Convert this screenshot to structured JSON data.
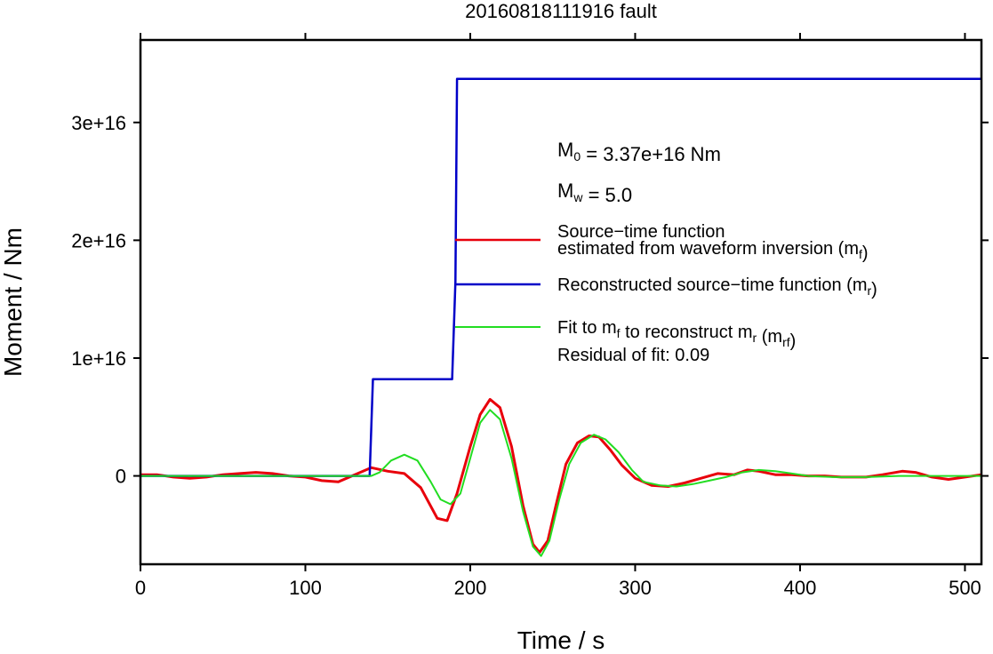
{
  "chart_data": {
    "type": "line",
    "title": "20160818111916 fault",
    "xlabel": "Time / s",
    "ylabel": "Moment / Nm",
    "xlim": [
      0,
      510
    ],
    "ylim": [
      -7500000000000000.0,
      3.7e+16
    ],
    "xticks": [
      0,
      100,
      200,
      300,
      400,
      500
    ],
    "xtick_labels": [
      "0",
      "100",
      "200",
      "300",
      "400",
      "500"
    ],
    "yticks": [
      0,
      1e+16,
      2e+16,
      3e+16
    ],
    "ytick_labels": [
      "0",
      "1e+16",
      "2e+16",
      "3e+16"
    ],
    "grid": false,
    "legend_position": "right",
    "annotations": {
      "m0": {
        "prefix": "M",
        "sub": "0",
        "suffix": " = 3.37e+16 Nm"
      },
      "mw": {
        "prefix": "M",
        "sub": "w",
        "suffix": " = 5.0"
      },
      "residual": "Residual of fit: 0.09"
    },
    "legend": [
      {
        "color": "#e8000b",
        "lines": [
          [
            {
              "t": "Source−time function"
            }
          ],
          [
            {
              "t": "estimated from waveform inversion (m"
            },
            {
              "t": "f",
              "sub": true
            },
            {
              "t": ")"
            }
          ]
        ]
      },
      {
        "color": "#0000c8",
        "lines": [
          [
            {
              "t": "Reconstructed source−time function (m"
            },
            {
              "t": "r",
              "sub": true
            },
            {
              "t": ")"
            }
          ]
        ]
      },
      {
        "color": "#22dd22",
        "lines": [
          [
            {
              "t": "Fit to m"
            },
            {
              "t": "f",
              "sub": true
            },
            {
              "t": " to reconstruct m"
            },
            {
              "t": "r",
              "sub": true
            },
            {
              "t": " (m"
            },
            {
              "t": "rf",
              "sub": true
            },
            {
              "t": ")"
            }
          ]
        ]
      }
    ],
    "series": [
      {
        "name": "Source−time function estimated from waveform inversion (mf)",
        "color": "#e8000b",
        "width": 3,
        "points": [
          [
            0,
            100000000000000.0
          ],
          [
            10,
            100000000000000.0
          ],
          [
            20,
            -100000000000000.0
          ],
          [
            30,
            -200000000000000.0
          ],
          [
            40,
            -100000000000000.0
          ],
          [
            50,
            100000000000000.0
          ],
          [
            60,
            200000000000000.0
          ],
          [
            70,
            300000000000000.0
          ],
          [
            80,
            200000000000000.0
          ],
          [
            90,
            0
          ],
          [
            100,
            -100000000000000.0
          ],
          [
            110,
            -400000000000000.0
          ],
          [
            120,
            -500000000000000.0
          ],
          [
            130,
            100000000000000.0
          ],
          [
            140,
            700000000000000.0
          ],
          [
            150,
            400000000000000.0
          ],
          [
            160,
            200000000000000.0
          ],
          [
            170,
            -1000000000000000.0
          ],
          [
            180,
            -3600000000000000.0
          ],
          [
            186,
            -3800000000000000.0
          ],
          [
            192,
            -1500000000000000.0
          ],
          [
            200,
            2500000000000000.0
          ],
          [
            206,
            5200000000000000.0
          ],
          [
            212,
            6500000000000000.0
          ],
          [
            218,
            5800000000000000.0
          ],
          [
            225,
            2500000000000000.0
          ],
          [
            232,
            -2500000000000000.0
          ],
          [
            238,
            -5800000000000000.0
          ],
          [
            242,
            -6500000000000000.0
          ],
          [
            247,
            -5500000000000000.0
          ],
          [
            252,
            -2500000000000000.0
          ],
          [
            258,
            1000000000000000.0
          ],
          [
            265,
            2800000000000000.0
          ],
          [
            272,
            3400000000000000.0
          ],
          [
            278,
            3300000000000000.0
          ],
          [
            285,
            2200000000000000.0
          ],
          [
            292,
            900000000000000.0
          ],
          [
            300,
            -200000000000000.0
          ],
          [
            310,
            -800000000000000.0
          ],
          [
            320,
            -900000000000000.0
          ],
          [
            330,
            -600000000000000.0
          ],
          [
            340,
            -200000000000000.0
          ],
          [
            350,
            200000000000000.0
          ],
          [
            360,
            100000000000000.0
          ],
          [
            368,
            500000000000000.0
          ],
          [
            375,
            400000000000000.0
          ],
          [
            385,
            100000000000000.0
          ],
          [
            395,
            100000000000000.0
          ],
          [
            405,
            0
          ],
          [
            415,
            0
          ],
          [
            425,
            -100000000000000.0
          ],
          [
            440,
            -100000000000000.0
          ],
          [
            450,
            100000000000000.0
          ],
          [
            462,
            400000000000000.0
          ],
          [
            470,
            300000000000000.0
          ],
          [
            480,
            -100000000000000.0
          ],
          [
            490,
            -300000000000000.0
          ],
          [
            500,
            -100000000000000.0
          ],
          [
            510,
            100000000000000.0
          ]
        ]
      },
      {
        "name": "Reconstructed source−time function (mr)",
        "color": "#0000c8",
        "width": 2.5,
        "points": [
          [
            0,
            0
          ],
          [
            139,
            0
          ],
          [
            141,
            8200000000000000.0
          ],
          [
            189,
            8200000000000000.0
          ],
          [
            191,
            1.65e+16
          ],
          [
            192,
            3.37e+16
          ],
          [
            510,
            3.37e+16
          ]
        ]
      },
      {
        "name": "Fit to mf to reconstruct mr (mrf)",
        "color": "#22dd22",
        "width": 2,
        "points": [
          [
            0,
            0
          ],
          [
            140,
            0
          ],
          [
            145,
            300000000000000.0
          ],
          [
            152,
            1300000000000000.0
          ],
          [
            160,
            1800000000000000.0
          ],
          [
            168,
            1300000000000000.0
          ],
          [
            176,
            -500000000000000.0
          ],
          [
            182,
            -2000000000000000.0
          ],
          [
            188,
            -2400000000000000.0
          ],
          [
            194,
            -1500000000000000.0
          ],
          [
            200,
            1500000000000000.0
          ],
          [
            206,
            4500000000000000.0
          ],
          [
            212,
            5600000000000000.0
          ],
          [
            218,
            4800000000000000.0
          ],
          [
            225,
            1500000000000000.0
          ],
          [
            232,
            -3000000000000000.0
          ],
          [
            238,
            -6000000000000000.0
          ],
          [
            243,
            -6800000000000000.0
          ],
          [
            248,
            -5500000000000000.0
          ],
          [
            254,
            -2000000000000000.0
          ],
          [
            260,
            1000000000000000.0
          ],
          [
            267,
            2800000000000000.0
          ],
          [
            275,
            3500000000000000.0
          ],
          [
            282,
            3100000000000000.0
          ],
          [
            290,
            2000000000000000.0
          ],
          [
            298,
            500000000000000.0
          ],
          [
            305,
            -500000000000000.0
          ],
          [
            315,
            -800000000000000.0
          ],
          [
            325,
            -900000000000000.0
          ],
          [
            335,
            -700000000000000.0
          ],
          [
            345,
            -400000000000000.0
          ],
          [
            355,
            -100000000000000.0
          ],
          [
            365,
            300000000000000.0
          ],
          [
            375,
            500000000000000.0
          ],
          [
            385,
            400000000000000.0
          ],
          [
            395,
            200000000000000.0
          ],
          [
            405,
            0
          ],
          [
            420,
            -100000000000000.0
          ],
          [
            440,
            -100000000000000.0
          ],
          [
            460,
            0
          ],
          [
            480,
            0
          ],
          [
            510,
            0
          ]
        ]
      }
    ]
  }
}
